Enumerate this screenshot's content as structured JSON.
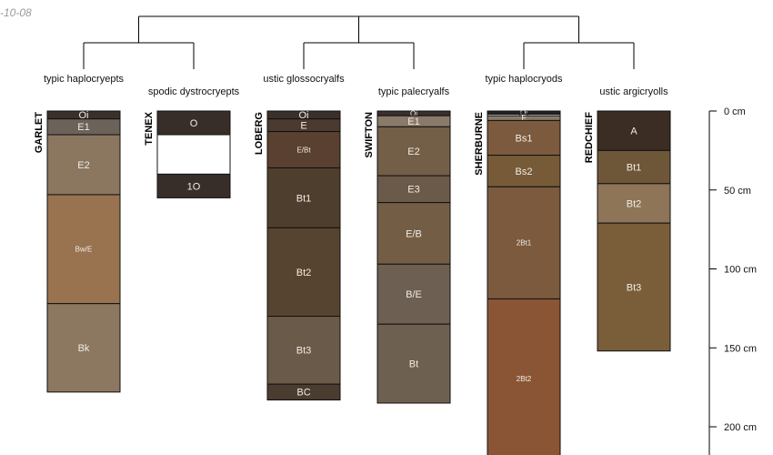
{
  "date_label": "-10-08",
  "depth_axis": {
    "unit": "cm",
    "max_depth": 220,
    "ticks": [
      {
        "value": 0,
        "label": "0 cm"
      },
      {
        "value": 50,
        "label": "50 cm"
      },
      {
        "value": 100,
        "label": "100 cm"
      },
      {
        "value": 150,
        "label": "150 cm"
      },
      {
        "value": 200,
        "label": "200 cm"
      }
    ]
  },
  "profiles": [
    {
      "name": "GARLET",
      "taxonomy": "typic haplocryepts",
      "horizons": [
        {
          "label": "Oi",
          "top": 0,
          "bottom": 5,
          "color": "#3a302b"
        },
        {
          "label": "E1",
          "top": 5,
          "bottom": 15,
          "color": "#6b625a"
        },
        {
          "label": "E2",
          "top": 15,
          "bottom": 53,
          "color": "#8b7660"
        },
        {
          "label": "Bw/E",
          "top": 53,
          "bottom": 122,
          "color": "#99724f"
        },
        {
          "label": "Bk",
          "top": 122,
          "bottom": 178,
          "color": "#8c7860"
        }
      ]
    },
    {
      "name": "TENEX",
      "taxonomy": "spodic dystrocryepts",
      "horizons": [
        {
          "label": "O",
          "top": 0,
          "bottom": 15,
          "color": "#372e2a"
        },
        {
          "label": "",
          "top": 15,
          "bottom": 40,
          "color": "#ffffff"
        },
        {
          "label": "1O",
          "top": 40,
          "bottom": 55,
          "color": "#372e2a"
        }
      ]
    },
    {
      "name": "LOBERG",
      "taxonomy": "ustic glossocryalfs",
      "horizons": [
        {
          "label": "Oi",
          "top": 0,
          "bottom": 5,
          "color": "#3a302b"
        },
        {
          "label": "E",
          "top": 5,
          "bottom": 13,
          "color": "#4a3a30"
        },
        {
          "label": "E/Bt",
          "top": 13,
          "bottom": 36,
          "color": "#5a4030"
        },
        {
          "label": "Bt1",
          "top": 36,
          "bottom": 74,
          "color": "#4e3e2e"
        },
        {
          "label": "Bt2",
          "top": 74,
          "bottom": 130,
          "color": "#574430"
        },
        {
          "label": "Bt3",
          "top": 130,
          "bottom": 173,
          "color": "#6a5a4a"
        },
        {
          "label": "BC",
          "top": 173,
          "bottom": 183,
          "color": "#4b3c30"
        }
      ]
    },
    {
      "name": "SWIFTON",
      "taxonomy": "typic palecryalfs",
      "horizons": [
        {
          "label": "Oi",
          "top": 0,
          "bottom": 3,
          "color": "#3a302b"
        },
        {
          "label": "E1",
          "top": 3,
          "bottom": 10,
          "color": "#8a7a6a"
        },
        {
          "label": "E2",
          "top": 10,
          "bottom": 41,
          "color": "#735f47"
        },
        {
          "label": "E3",
          "top": 41,
          "bottom": 58,
          "color": "#6b5a4a"
        },
        {
          "label": "E/B",
          "top": 58,
          "bottom": 97,
          "color": "#735e45"
        },
        {
          "label": "B/E",
          "top": 97,
          "bottom": 135,
          "color": "#6d5f52"
        },
        {
          "label": "Bt",
          "top": 135,
          "bottom": 185,
          "color": "#6e6050"
        }
      ]
    },
    {
      "name": "SHERBURNE",
      "taxonomy": "typic haplocryods",
      "horizons": [
        {
          "label": "Oi",
          "top": 0,
          "bottom": 2,
          "color": "#222222"
        },
        {
          "label": "Oe",
          "top": 2,
          "bottom": 3,
          "color": "#ffffff"
        },
        {
          "label": "E",
          "top": 3,
          "bottom": 6,
          "color": "#8a7a6a"
        },
        {
          "label": "Bs1",
          "top": 6,
          "bottom": 28,
          "color": "#7b5a3e"
        },
        {
          "label": "Bs2",
          "top": 28,
          "bottom": 48,
          "color": "#775a37"
        },
        {
          "label": "2Bt1",
          "top": 48,
          "bottom": 119,
          "color": "#7b5a3e"
        },
        {
          "label": "2Bt2",
          "top": 119,
          "bottom": 220,
          "color": "#8a5535"
        }
      ]
    },
    {
      "name": "REDCHIEF",
      "taxonomy": "ustic argicryolls",
      "horizons": [
        {
          "label": "A",
          "top": 0,
          "bottom": 25,
          "color": "#3b2d23"
        },
        {
          "label": "Bt1",
          "top": 25,
          "bottom": 46,
          "color": "#6e5638"
        },
        {
          "label": "Bt2",
          "top": 46,
          "bottom": 71,
          "color": "#8e7558"
        },
        {
          "label": "Bt3",
          "top": 71,
          "bottom": 152,
          "color": "#7a5e3a"
        }
      ]
    }
  ]
}
